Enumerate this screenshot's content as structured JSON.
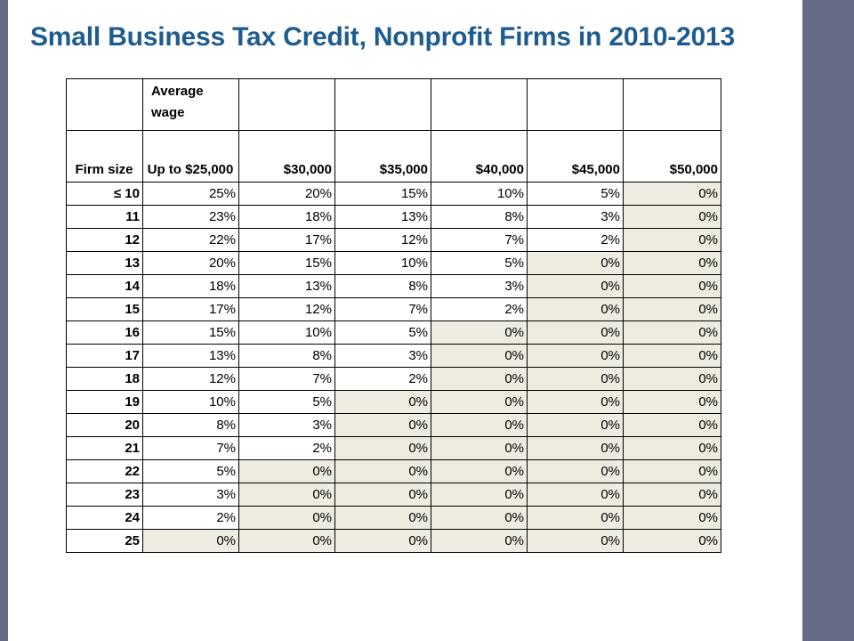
{
  "title": "Small Business Tax Credit, Nonprofit Firms in 2010-2013",
  "table": {
    "corner_header": "Average wage",
    "firm_size_header": "Firm size",
    "wage_headers": [
      "Up to $25,000",
      "$30,000",
      "$35,000",
      "$40,000",
      "$45,000",
      "$50,000"
    ],
    "rows": [
      {
        "size": "≤ 10",
        "values": [
          "25%",
          "20%",
          "15%",
          "10%",
          "5%",
          "0%"
        ]
      },
      {
        "size": "11",
        "values": [
          "23%",
          "18%",
          "13%",
          "8%",
          "3%",
          "0%"
        ]
      },
      {
        "size": "12",
        "values": [
          "22%",
          "17%",
          "12%",
          "7%",
          "2%",
          "0%"
        ]
      },
      {
        "size": "13",
        "values": [
          "20%",
          "15%",
          "10%",
          "5%",
          "0%",
          "0%"
        ]
      },
      {
        "size": "14",
        "values": [
          "18%",
          "13%",
          "8%",
          "3%",
          "0%",
          "0%"
        ]
      },
      {
        "size": "15",
        "values": [
          "17%",
          "12%",
          "7%",
          "2%",
          "0%",
          "0%"
        ]
      },
      {
        "size": "16",
        "values": [
          "15%",
          "10%",
          "5%",
          "0%",
          "0%",
          "0%"
        ]
      },
      {
        "size": "17",
        "values": [
          "13%",
          "8%",
          "3%",
          "0%",
          "0%",
          "0%"
        ]
      },
      {
        "size": "18",
        "values": [
          "12%",
          "7%",
          "2%",
          "0%",
          "0%",
          "0%"
        ]
      },
      {
        "size": "19",
        "values": [
          "10%",
          "5%",
          "0%",
          "0%",
          "0%",
          "0%"
        ]
      },
      {
        "size": "20",
        "values": [
          "8%",
          "3%",
          "0%",
          "0%",
          "0%",
          "0%"
        ]
      },
      {
        "size": "21",
        "values": [
          "7%",
          "2%",
          "0%",
          "0%",
          "0%",
          "0%"
        ]
      },
      {
        "size": "22",
        "values": [
          "5%",
          "0%",
          "0%",
          "0%",
          "0%",
          "0%"
        ]
      },
      {
        "size": "23",
        "values": [
          "3%",
          "0%",
          "0%",
          "0%",
          "0%",
          "0%"
        ]
      },
      {
        "size": "24",
        "values": [
          "2%",
          "0%",
          "0%",
          "0%",
          "0%",
          "0%"
        ]
      },
      {
        "size": "25",
        "values": [
          "0%",
          "0%",
          "0%",
          "0%",
          "0%",
          "0%"
        ]
      }
    ]
  },
  "colors": {
    "title": "#1e5c8f",
    "side_bars": "#666b85",
    "zero_cell_fill": "#eeece1"
  }
}
